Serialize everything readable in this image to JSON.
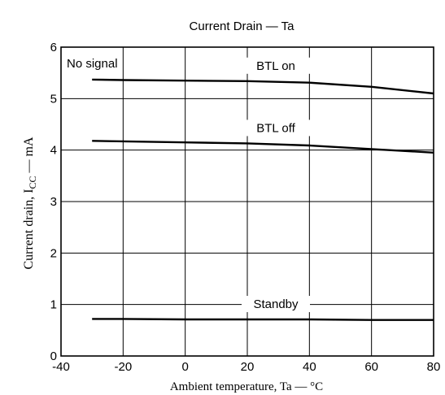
{
  "chart_data": {
    "type": "line",
    "title": "Current Drain — Ta",
    "xlabel": "Ambient temperature, Ta — °C",
    "ylabel_main": "Current drain, I",
    "ylabel_sub": "CC",
    "ylabel_tail": " — mA",
    "xlim": [
      -40,
      80
    ],
    "ylim": [
      0,
      6
    ],
    "xticks": [
      -40,
      -20,
      0,
      20,
      40,
      60,
      80
    ],
    "yticks": [
      0,
      1,
      2,
      3,
      4,
      5,
      6
    ],
    "grid": true,
    "annotations": [
      "No signal"
    ],
    "series": [
      {
        "name": "BTL on",
        "x": [
          -30,
          -20,
          0,
          20,
          40,
          60,
          80
        ],
        "y": [
          5.37,
          5.36,
          5.35,
          5.34,
          5.31,
          5.23,
          5.1
        ]
      },
      {
        "name": "BTL off",
        "x": [
          -30,
          -20,
          0,
          20,
          40,
          60,
          80
        ],
        "y": [
          4.18,
          4.17,
          4.15,
          4.13,
          4.09,
          4.02,
          3.95
        ]
      },
      {
        "name": "Standby",
        "x": [
          -30,
          -20,
          0,
          20,
          40,
          60,
          80
        ],
        "y": [
          0.72,
          0.72,
          0.71,
          0.71,
          0.71,
          0.7,
          0.7
        ]
      }
    ]
  }
}
